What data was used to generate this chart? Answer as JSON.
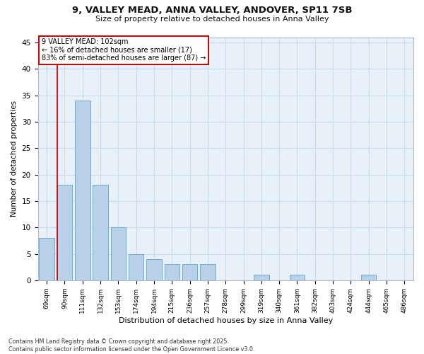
{
  "title_line1": "9, VALLEY MEAD, ANNA VALLEY, ANDOVER, SP11 7SB",
  "title_line2": "Size of property relative to detached houses in Anna Valley",
  "xlabel": "Distribution of detached houses by size in Anna Valley",
  "ylabel": "Number of detached properties",
  "categories": [
    "69sqm",
    "90sqm",
    "111sqm",
    "132sqm",
    "153sqm",
    "174sqm",
    "194sqm",
    "215sqm",
    "236sqm",
    "257sqm",
    "278sqm",
    "299sqm",
    "319sqm",
    "340sqm",
    "361sqm",
    "382sqm",
    "403sqm",
    "424sqm",
    "444sqm",
    "465sqm",
    "486sqm"
  ],
  "values": [
    8,
    18,
    34,
    18,
    10,
    5,
    4,
    3,
    3,
    3,
    0,
    0,
    1,
    0,
    1,
    0,
    0,
    0,
    1,
    0,
    0
  ],
  "bar_color": "#b8d0e8",
  "bar_edge_color": "#6aaed6",
  "grid_color": "#cddcec",
  "bg_color": "#e8f0f8",
  "annotation_line1": "9 VALLEY MEAD: 102sqm",
  "annotation_line2": "← 16% of detached houses are smaller (17)",
  "annotation_line3": "83% of semi-detached houses are larger (87) →",
  "annotation_box_edge_color": "#cc0000",
  "vline_color": "#cc0000",
  "ylim": [
    0,
    46
  ],
  "yticks": [
    0,
    5,
    10,
    15,
    20,
    25,
    30,
    35,
    40,
    45
  ],
  "footer": "Contains HM Land Registry data © Crown copyright and database right 2025.\nContains public sector information licensed under the Open Government Licence v3.0."
}
